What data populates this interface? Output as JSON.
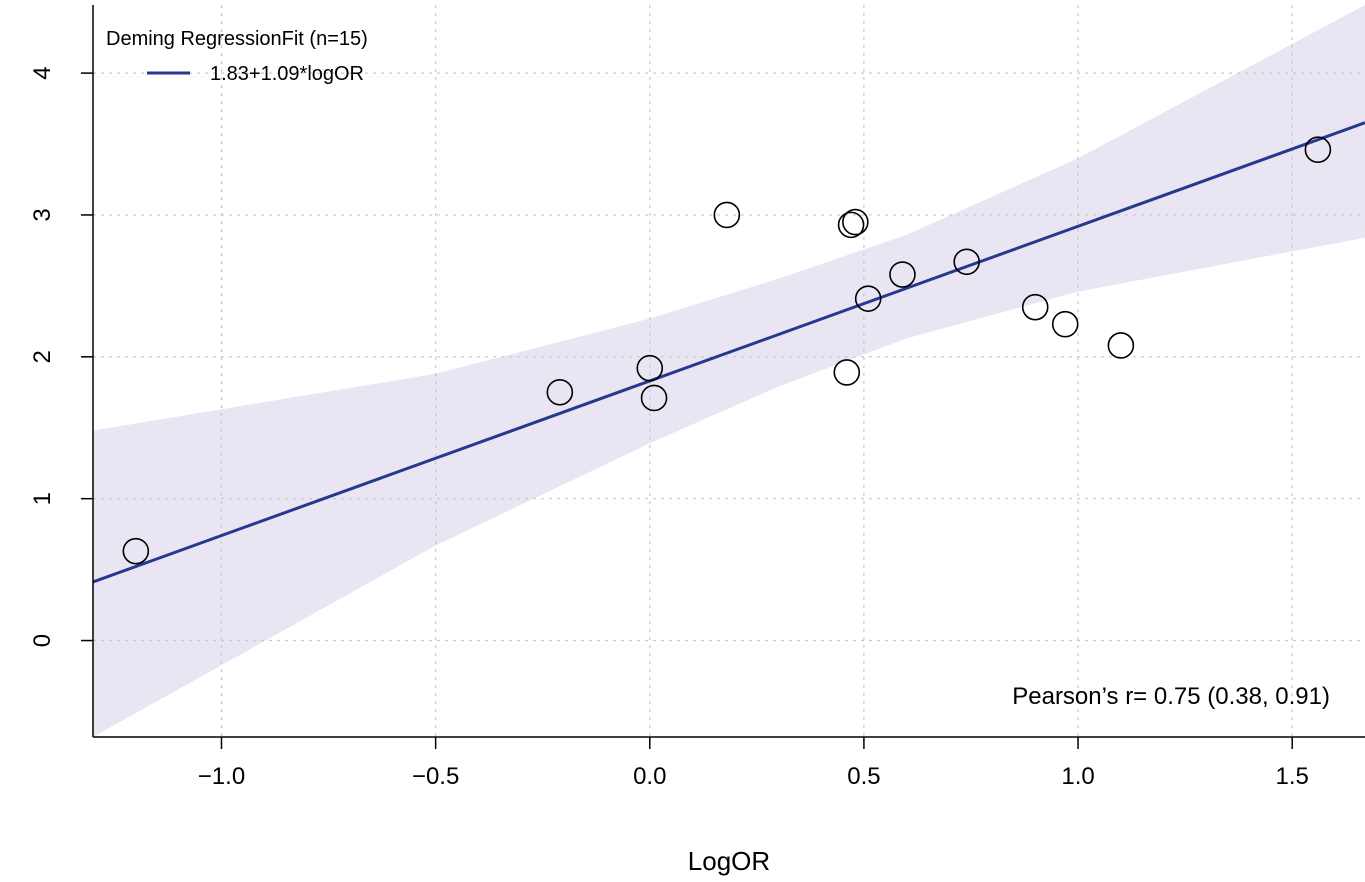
{
  "chart_data": {
    "type": "scatter",
    "xlabel": "LogOR",
    "ylabel": "",
    "xlim": [
      -1.3,
      1.67
    ],
    "ylim": [
      -0.68,
      4.48
    ],
    "x_ticks": [
      -1.0,
      -0.5,
      0.0,
      0.5,
      1.0,
      1.5
    ],
    "x_tick_labels": [
      "−1.0",
      "−0.5",
      "0.0",
      "0.5",
      "1.0",
      "1.5"
    ],
    "y_ticks": [
      0,
      1,
      2,
      3,
      4
    ],
    "y_tick_labels": [
      "0",
      "1",
      "2",
      "3",
      "4"
    ],
    "grid": true,
    "points": [
      {
        "x": -1.2,
        "y": 0.63
      },
      {
        "x": -0.21,
        "y": 1.75
      },
      {
        "x": 0.0,
        "y": 1.92
      },
      {
        "x": 0.01,
        "y": 1.71
      },
      {
        "x": 0.18,
        "y": 3.0
      },
      {
        "x": 0.46,
        "y": 1.89
      },
      {
        "x": 0.47,
        "y": 2.93
      },
      {
        "x": 0.48,
        "y": 2.95
      },
      {
        "x": 0.51,
        "y": 2.41
      },
      {
        "x": 0.59,
        "y": 2.58
      },
      {
        "x": 0.74,
        "y": 2.67
      },
      {
        "x": 0.9,
        "y": 2.35
      },
      {
        "x": 0.97,
        "y": 2.23
      },
      {
        "x": 1.1,
        "y": 2.08
      },
      {
        "x": 1.56,
        "y": 3.46
      }
    ],
    "fit_line": {
      "intercept": 1.83,
      "slope": 1.09
    },
    "confidence_band": {
      "upper": [
        {
          "x": -1.3,
          "y": 1.48
        },
        {
          "x": -0.5,
          "y": 1.88
        },
        {
          "x": 0.0,
          "y": 2.27
        },
        {
          "x": 0.3,
          "y": 2.55
        },
        {
          "x": 0.6,
          "y": 2.86
        },
        {
          "x": 1.0,
          "y": 3.4
        },
        {
          "x": 1.67,
          "y": 4.48
        }
      ],
      "lower": [
        {
          "x": -1.3,
          "y": -0.68
        },
        {
          "x": -0.5,
          "y": 0.67
        },
        {
          "x": 0.0,
          "y": 1.39
        },
        {
          "x": 0.3,
          "y": 1.79
        },
        {
          "x": 0.6,
          "y": 2.13
        },
        {
          "x": 1.0,
          "y": 2.46
        },
        {
          "x": 1.67,
          "y": 2.84
        }
      ]
    },
    "legend": {
      "title": "Deming RegressionFit (n=15)",
      "entries": [
        {
          "label": "1.83+1.09*logOR"
        }
      ],
      "placement": "top-left"
    },
    "annotation": "Pearson’s r= 0.75 (0.38, 0.91)",
    "colors": {
      "line": "#263890",
      "band": "#e9e5f3",
      "point_stroke": "#000000",
      "grid": "#c8c8c8"
    }
  }
}
